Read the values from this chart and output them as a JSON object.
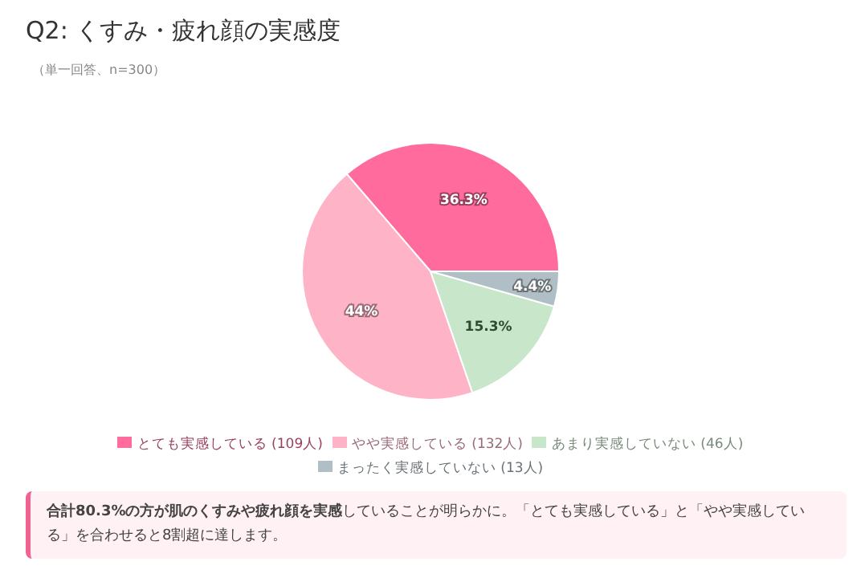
{
  "chart_data": {
    "type": "pie",
    "title": "Q2: くすみ・疲れ顔の実感度",
    "subtitle": "（単一回答、n=300）",
    "categories": [
      "とても実感している (109人)",
      "やや実感している (132人)",
      "あまり実感していない (46人)",
      "まったく実感していない (13人)"
    ],
    "values": [
      36.3,
      44,
      15.3,
      4.4
    ],
    "value_labels": [
      "36.3%",
      "44%",
      "15.3%",
      "4.4%"
    ],
    "colors": [
      "#ff6b9d",
      "#ffb3c6",
      "#c8e6c9",
      "#b0bec5"
    ],
    "legend": "bottom",
    "annotations": [
      "**合計80.3%の方が肌のくすみや疲れ顔を実感**していることが明らかに。「とても実感している」と「やや実感している」を合わせると8割超に達します。"
    ]
  }
}
